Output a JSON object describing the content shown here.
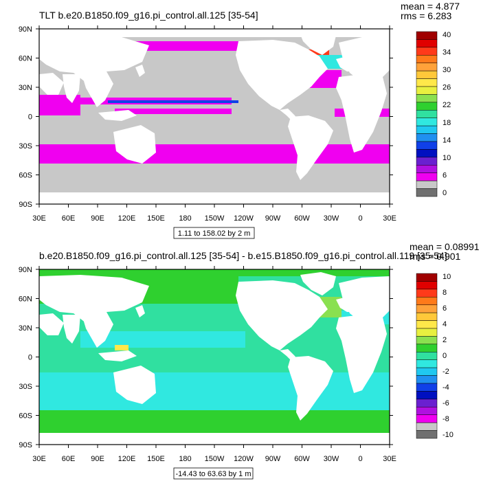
{
  "panels": [
    {
      "id": "top",
      "title": "TLT b.e20.B1850.f09_g16.pi_control.all.125 [35-54]",
      "stats": {
        "mean": "mean = 4.877",
        "rms": "rms = 6.283"
      },
      "range_label": "1.11 to 158.02 by 2 m",
      "colorbar": {
        "labels": [
          "40",
          "34",
          "30",
          "26",
          "22",
          "18",
          "14",
          "10",
          "6",
          "0"
        ],
        "colors": [
          "#a00000",
          "#e00000",
          "#ff3a1a",
          "#ff7a1a",
          "#ffa23a",
          "#ffc83a",
          "#ffe84a",
          "#e8f040",
          "#8ae050",
          "#2fd02f",
          "#30e0a0",
          "#30e8e0",
          "#20c8f0",
          "#2090f0",
          "#1040e8",
          "#0010c0",
          "#6a20d0",
          "#b010e0",
          "#f000f0",
          "#c8c8c8",
          "#707070"
        ]
      },
      "field": "tlt"
    },
    {
      "id": "bottom",
      "title": "b.e20.B1850.f09_g16.pi_control.all.125 [35-54] - b.e15.B1850.f09_g16.pi_control.all.119 [35-54]",
      "stats": {
        "mean": "mean = 0.08991",
        "rms": "rms = 0.901"
      },
      "range_label": "-14.43 to 63.63 by 1 m",
      "colorbar": {
        "labels": [
          "10",
          "8",
          "6",
          "4",
          "2",
          "0",
          "-2",
          "-4",
          "-6",
          "-8",
          "-10"
        ],
        "colors": [
          "#a00000",
          "#e00000",
          "#ff3a1a",
          "#ff7a1a",
          "#ffa23a",
          "#ffc83a",
          "#ffe84a",
          "#e8f040",
          "#8ae050",
          "#2fd02f",
          "#30e0a0",
          "#30e8e0",
          "#20c8f0",
          "#2090f0",
          "#1040e8",
          "#0010c0",
          "#6a20d0",
          "#b010e0",
          "#f000f0",
          "#c8c8c8",
          "#707070"
        ]
      },
      "field": "diff"
    }
  ],
  "axes": {
    "lat_labels": [
      "90N",
      "60N",
      "30N",
      "0",
      "30S",
      "60S",
      "90S"
    ],
    "lon_labels": [
      "30E",
      "60E",
      "90E",
      "120E",
      "150E",
      "180",
      "150W",
      "120W",
      "90W",
      "60W",
      "30W",
      "0",
      "30E"
    ]
  },
  "colors": {
    "land": "#ffffff",
    "missing": "#c8c8c8",
    "frame": "#000000"
  }
}
